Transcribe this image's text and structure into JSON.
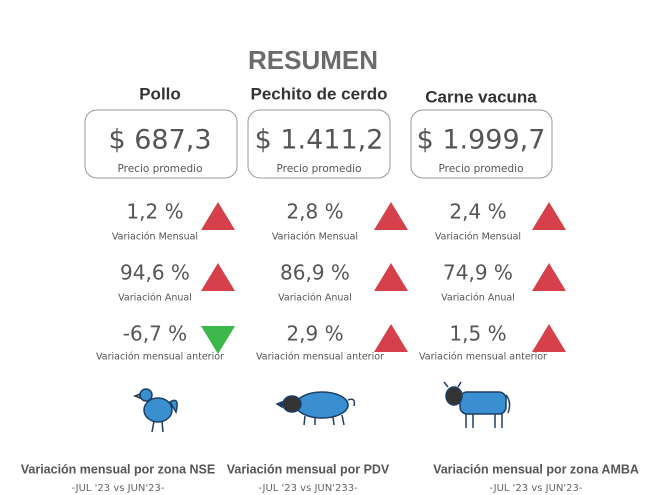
{
  "title": "RESUMEN",
  "columns": [
    {
      "name": "Pollo",
      "price": "$ 687,3",
      "price_label": "Precio promedio",
      "metrics": [
        {
          "value": "1,2 %",
          "label": "Variación Mensual",
          "direction": "up"
        },
        {
          "value": "94,6 %",
          "label": "Variación Anual",
          "direction": "up"
        },
        {
          "value": "-6,7 %",
          "label": "Variación mensual anterior",
          "direction": "down"
        }
      ],
      "footer": "Variación mensual por zona NSE",
      "footer_sub": "-JUL '23 vs JUN'23-"
    },
    {
      "name": "Pechito de cerdo",
      "price": "$ 1.411,2",
      "price_label": "Precio promedio",
      "metrics": [
        {
          "value": "2,8 %",
          "label": "Variación Mensual",
          "direction": "up"
        },
        {
          "value": "86,9 %",
          "label": "Variación Anual",
          "direction": "up"
        },
        {
          "value": "2,9 %",
          "label": "Variación mensual anterior",
          "direction": "up"
        }
      ],
      "footer": "Variación mensual por PDV",
      "footer_sub": "-JUL '23 vs JUN'233-"
    },
    {
      "name": "Carne vacuna",
      "price": "$ 1.999,7",
      "price_label": "Precio promedio",
      "metrics": [
        {
          "value": "2,4 %",
          "label": "Variación Mensual",
          "direction": "up"
        },
        {
          "value": "74,9 %",
          "label": "Variación Anual",
          "direction": "up"
        },
        {
          "value": "1,5 %",
          "label": "Variación mensual anterior",
          "direction": "up"
        }
      ],
      "footer": "Variación mensual por zona AMBA",
      "footer_sub": "-JUL '23 vs JUN'23-"
    }
  ]
}
